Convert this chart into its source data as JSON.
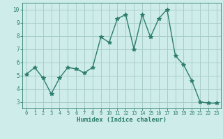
{
  "x": [
    0,
    1,
    2,
    3,
    4,
    5,
    6,
    7,
    8,
    9,
    10,
    11,
    12,
    13,
    14,
    15,
    16,
    17,
    18,
    19,
    20,
    21,
    22,
    23
  ],
  "y": [
    5.1,
    5.6,
    4.8,
    3.6,
    4.8,
    5.6,
    5.5,
    5.2,
    5.6,
    7.9,
    7.5,
    9.3,
    9.6,
    7.0,
    9.6,
    7.9,
    9.3,
    10.0,
    6.5,
    5.8,
    4.6,
    3.0,
    2.9,
    2.9
  ],
  "line_color": "#2d7d6e",
  "marker": "*",
  "marker_size": 4,
  "bg_color": "#ceecea",
  "grid_color": "#a8ceca",
  "xlabel": "Humidex (Indice chaleur)",
  "ylim": [
    2.5,
    10.5
  ],
  "xlim": [
    -0.5,
    23.5
  ],
  "yticks": [
    3,
    4,
    5,
    6,
    7,
    8,
    9,
    10
  ],
  "xticks": [
    0,
    1,
    2,
    3,
    4,
    5,
    6,
    7,
    8,
    9,
    10,
    11,
    12,
    13,
    14,
    15,
    16,
    17,
    18,
    19,
    20,
    21,
    22,
    23
  ]
}
